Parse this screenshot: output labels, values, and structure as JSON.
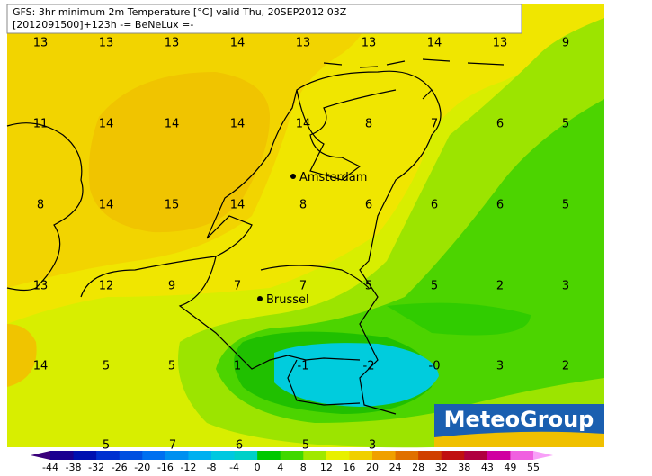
{
  "header": {
    "line1": "GFS: 3hr minimum 2m Temperature [°C] valid Thu, 20SEP2012 03Z",
    "line2": "[2012091500]+123h -= BeNeLux =-"
  },
  "grid": {
    "rows": [
      [
        "13",
        "13",
        "13",
        "14",
        "13",
        "13",
        "14",
        "13",
        "9"
      ],
      [
        "11",
        "14",
        "14",
        "14",
        "14",
        "8",
        "7",
        "6",
        "5"
      ],
      [
        "8",
        "14",
        "15",
        "14",
        "8",
        "6",
        "6",
        "6",
        "5"
      ],
      [
        "13",
        "12",
        "9",
        "7",
        "7",
        "5",
        "5",
        "2",
        "3"
      ],
      [
        "14",
        "5",
        "5",
        "1",
        "-1",
        "-2",
        "-0",
        "3",
        "2"
      ],
      [
        "5",
        "7",
        "6",
        "5",
        "3"
      ]
    ]
  },
  "cities": [
    {
      "name": "Amsterdam"
    },
    {
      "name": "Brussel"
    }
  ],
  "logo": "MeteoGroup",
  "colorbar": {
    "labels": [
      -44,
      -38,
      -32,
      -26,
      -20,
      -16,
      -12,
      -8,
      -4,
      0,
      4,
      8,
      12,
      16,
      20,
      24,
      28,
      32,
      38,
      43,
      49,
      55
    ],
    "colors": [
      "#3a007a",
      "#1a0090",
      "#0010b0",
      "#0030d0",
      "#0050e0",
      "#0070f0",
      "#0090f0",
      "#00b0f0",
      "#00c8e0",
      "#00d0c8",
      "#00c800",
      "#40d800",
      "#a0e800",
      "#e8f000",
      "#f0d000",
      "#f0a000",
      "#e07000",
      "#d04000",
      "#c01010",
      "#b00040",
      "#d000a0",
      "#f060e0",
      "#f8a0f8"
    ]
  }
}
